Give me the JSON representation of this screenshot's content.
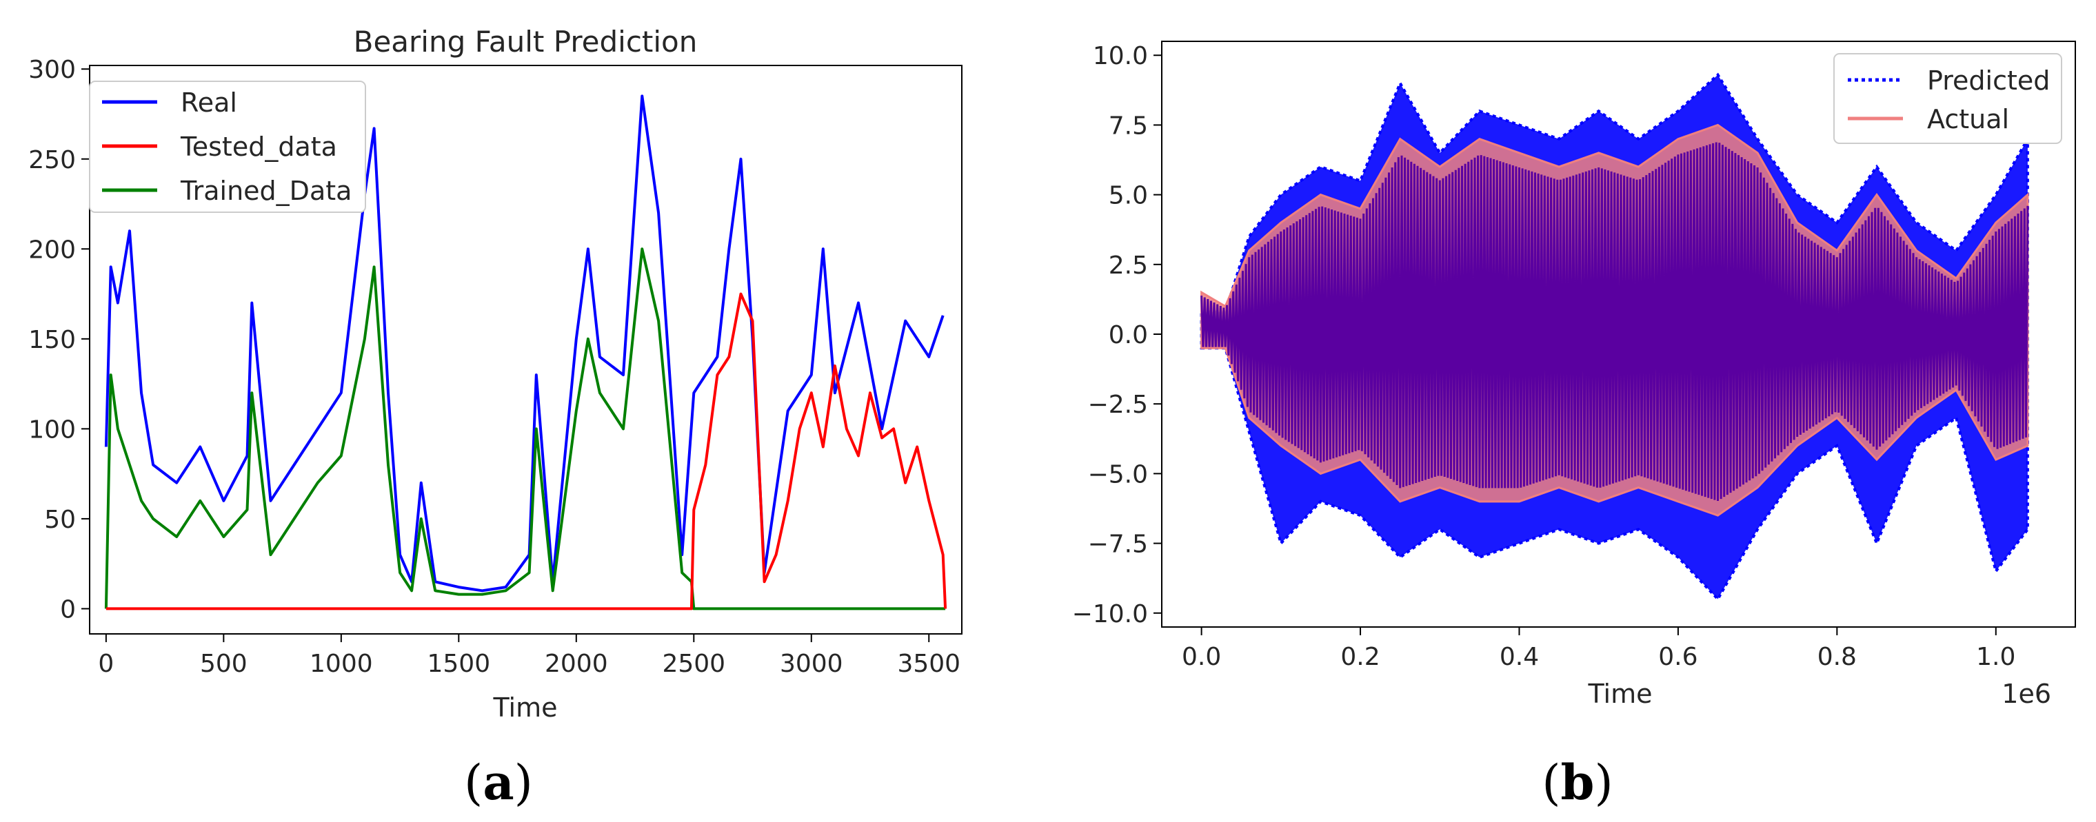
{
  "chart_data": [
    {
      "panel_label": {
        "open": "(",
        "letter": "a",
        "close": ")"
      },
      "type": "line",
      "title": "Bearing Fault Prediction",
      "xlabel": "Time",
      "ylabel": "",
      "xlim": [
        -70,
        3640
      ],
      "ylim": [
        -14,
        302
      ],
      "xticks": [
        0,
        500,
        1000,
        1500,
        2000,
        2500,
        3000,
        3500
      ],
      "yticks": [
        0,
        50,
        100,
        150,
        200,
        250,
        300
      ],
      "grid": false,
      "legend": {
        "placement": "top-left"
      },
      "series": [
        {
          "name": "Real",
          "color": "#0000ff",
          "x": [
            0,
            20,
            50,
            100,
            150,
            200,
            300,
            400,
            500,
            600,
            620,
            700,
            800,
            900,
            1000,
            1100,
            1140,
            1200,
            1250,
            1300,
            1340,
            1400,
            1500,
            1600,
            1700,
            1800,
            1830,
            1900,
            2000,
            2050,
            2100,
            2200,
            2280,
            2350,
            2450,
            2500,
            2600,
            2650,
            2700,
            2750,
            2800,
            2900,
            3000,
            3050,
            3100,
            3200,
            3300,
            3400,
            3500,
            3560
          ],
          "y": [
            90,
            190,
            170,
            210,
            120,
            80,
            70,
            90,
            60,
            85,
            170,
            60,
            80,
            100,
            120,
            230,
            267,
            120,
            30,
            15,
            70,
            15,
            12,
            10,
            12,
            30,
            130,
            15,
            150,
            200,
            140,
            130,
            285,
            220,
            30,
            120,
            140,
            200,
            250,
            150,
            20,
            110,
            130,
            200,
            120,
            170,
            100,
            160,
            140,
            163
          ]
        },
        {
          "name": "Tested_data",
          "color": "#ff0000",
          "x": [
            0,
            2490,
            2500,
            2550,
            2600,
            2650,
            2700,
            2750,
            2800,
            2850,
            2900,
            2950,
            3000,
            3050,
            3100,
            3150,
            3200,
            3250,
            3300,
            3350,
            3400,
            3450,
            3500,
            3560,
            3570
          ],
          "y": [
            0,
            0,
            55,
            80,
            130,
            140,
            175,
            160,
            15,
            30,
            60,
            100,
            120,
            90,
            135,
            100,
            85,
            120,
            95,
            100,
            70,
            90,
            60,
            30,
            0
          ]
        },
        {
          "name": "Trained_Data",
          "color": "#008000",
          "x": [
            0,
            20,
            50,
            100,
            150,
            200,
            300,
            400,
            500,
            600,
            620,
            700,
            800,
            900,
            1000,
            1100,
            1140,
            1200,
            1250,
            1300,
            1340,
            1400,
            1500,
            1600,
            1700,
            1800,
            1830,
            1900,
            2000,
            2050,
            2100,
            2200,
            2280,
            2350,
            2450,
            2490,
            2500,
            3570
          ],
          "y": [
            0,
            130,
            100,
            80,
            60,
            50,
            40,
            60,
            40,
            55,
            120,
            30,
            50,
            70,
            85,
            150,
            190,
            80,
            20,
            10,
            50,
            10,
            8,
            8,
            10,
            20,
            100,
            10,
            110,
            150,
            120,
            100,
            200,
            160,
            20,
            15,
            0,
            0
          ]
        }
      ]
    },
    {
      "panel_label": {
        "open": "(",
        "letter": "b",
        "close": ")"
      },
      "type": "line",
      "title": "",
      "xlabel": "Time",
      "ylabel": "",
      "x_offset_label": "1e6",
      "xlim": [
        -0.05,
        1.1
      ],
      "ylim": [
        -10.5,
        10.5
      ],
      "xticks": [
        0.0,
        0.2,
        0.4,
        0.6,
        0.8,
        1.0
      ],
      "xtick_labels": [
        "0.0",
        "0.2",
        "0.4",
        "0.6",
        "0.8",
        "1.0"
      ],
      "yticks": [
        10.0,
        7.5,
        5.0,
        2.5,
        0.0,
        -2.5,
        -5.0,
        -7.5,
        -10.0
      ],
      "ytick_labels": [
        "10.0",
        "7.5",
        "5.0",
        "2.5",
        "0.0",
        "−2.5",
        "−5.0",
        "−7.5",
        "−10.0"
      ],
      "grid": false,
      "legend": {
        "placement": "top-right"
      },
      "series": [
        {
          "name": "Predicted",
          "color": "#0000ff",
          "style": "dotted",
          "x": [
            0.0,
            0.03,
            0.06,
            0.1,
            0.15,
            0.2,
            0.25,
            0.3,
            0.35,
            0.4,
            0.45,
            0.5,
            0.55,
            0.6,
            0.65,
            0.7,
            0.75,
            0.8,
            0.85,
            0.9,
            0.95,
            1.0,
            1.04
          ],
          "upper": [
            0.8,
            0.8,
            3.5,
            5.0,
            6.0,
            5.5,
            9.0,
            6.5,
            8.0,
            7.5,
            7.0,
            8.0,
            7.0,
            8.0,
            9.3,
            7.0,
            5.0,
            4.0,
            6.0,
            4.0,
            3.0,
            5.0,
            7.0
          ],
          "lower": [
            -0.5,
            -0.5,
            -3.5,
            -7.5,
            -6.0,
            -6.5,
            -8.0,
            -7.0,
            -8.0,
            -7.5,
            -7.0,
            -7.5,
            -7.0,
            -8.0,
            -9.5,
            -7.0,
            -5.0,
            -4.0,
            -7.5,
            -4.0,
            -3.0,
            -8.5,
            -7.0
          ]
        },
        {
          "name": "Actual",
          "color": "#f08080",
          "style": "solid",
          "x": [
            0.0,
            0.03,
            0.06,
            0.1,
            0.15,
            0.2,
            0.25,
            0.3,
            0.35,
            0.4,
            0.45,
            0.5,
            0.55,
            0.6,
            0.65,
            0.7,
            0.75,
            0.8,
            0.85,
            0.9,
            0.95,
            1.0,
            1.04
          ],
          "upper": [
            1.5,
            1.0,
            3.0,
            4.0,
            5.0,
            4.5,
            7.0,
            6.0,
            7.0,
            6.5,
            6.0,
            6.5,
            6.0,
            7.0,
            7.5,
            6.5,
            4.0,
            3.0,
            5.0,
            3.0,
            2.0,
            4.0,
            5.0
          ],
          "lower": [
            -0.5,
            -0.5,
            -3.0,
            -4.0,
            -5.0,
            -4.5,
            -6.0,
            -5.5,
            -6.0,
            -6.0,
            -5.5,
            -6.0,
            -5.5,
            -6.0,
            -6.5,
            -5.5,
            -4.0,
            -3.0,
            -4.5,
            -3.0,
            -2.0,
            -4.5,
            -4.0
          ]
        }
      ]
    }
  ]
}
